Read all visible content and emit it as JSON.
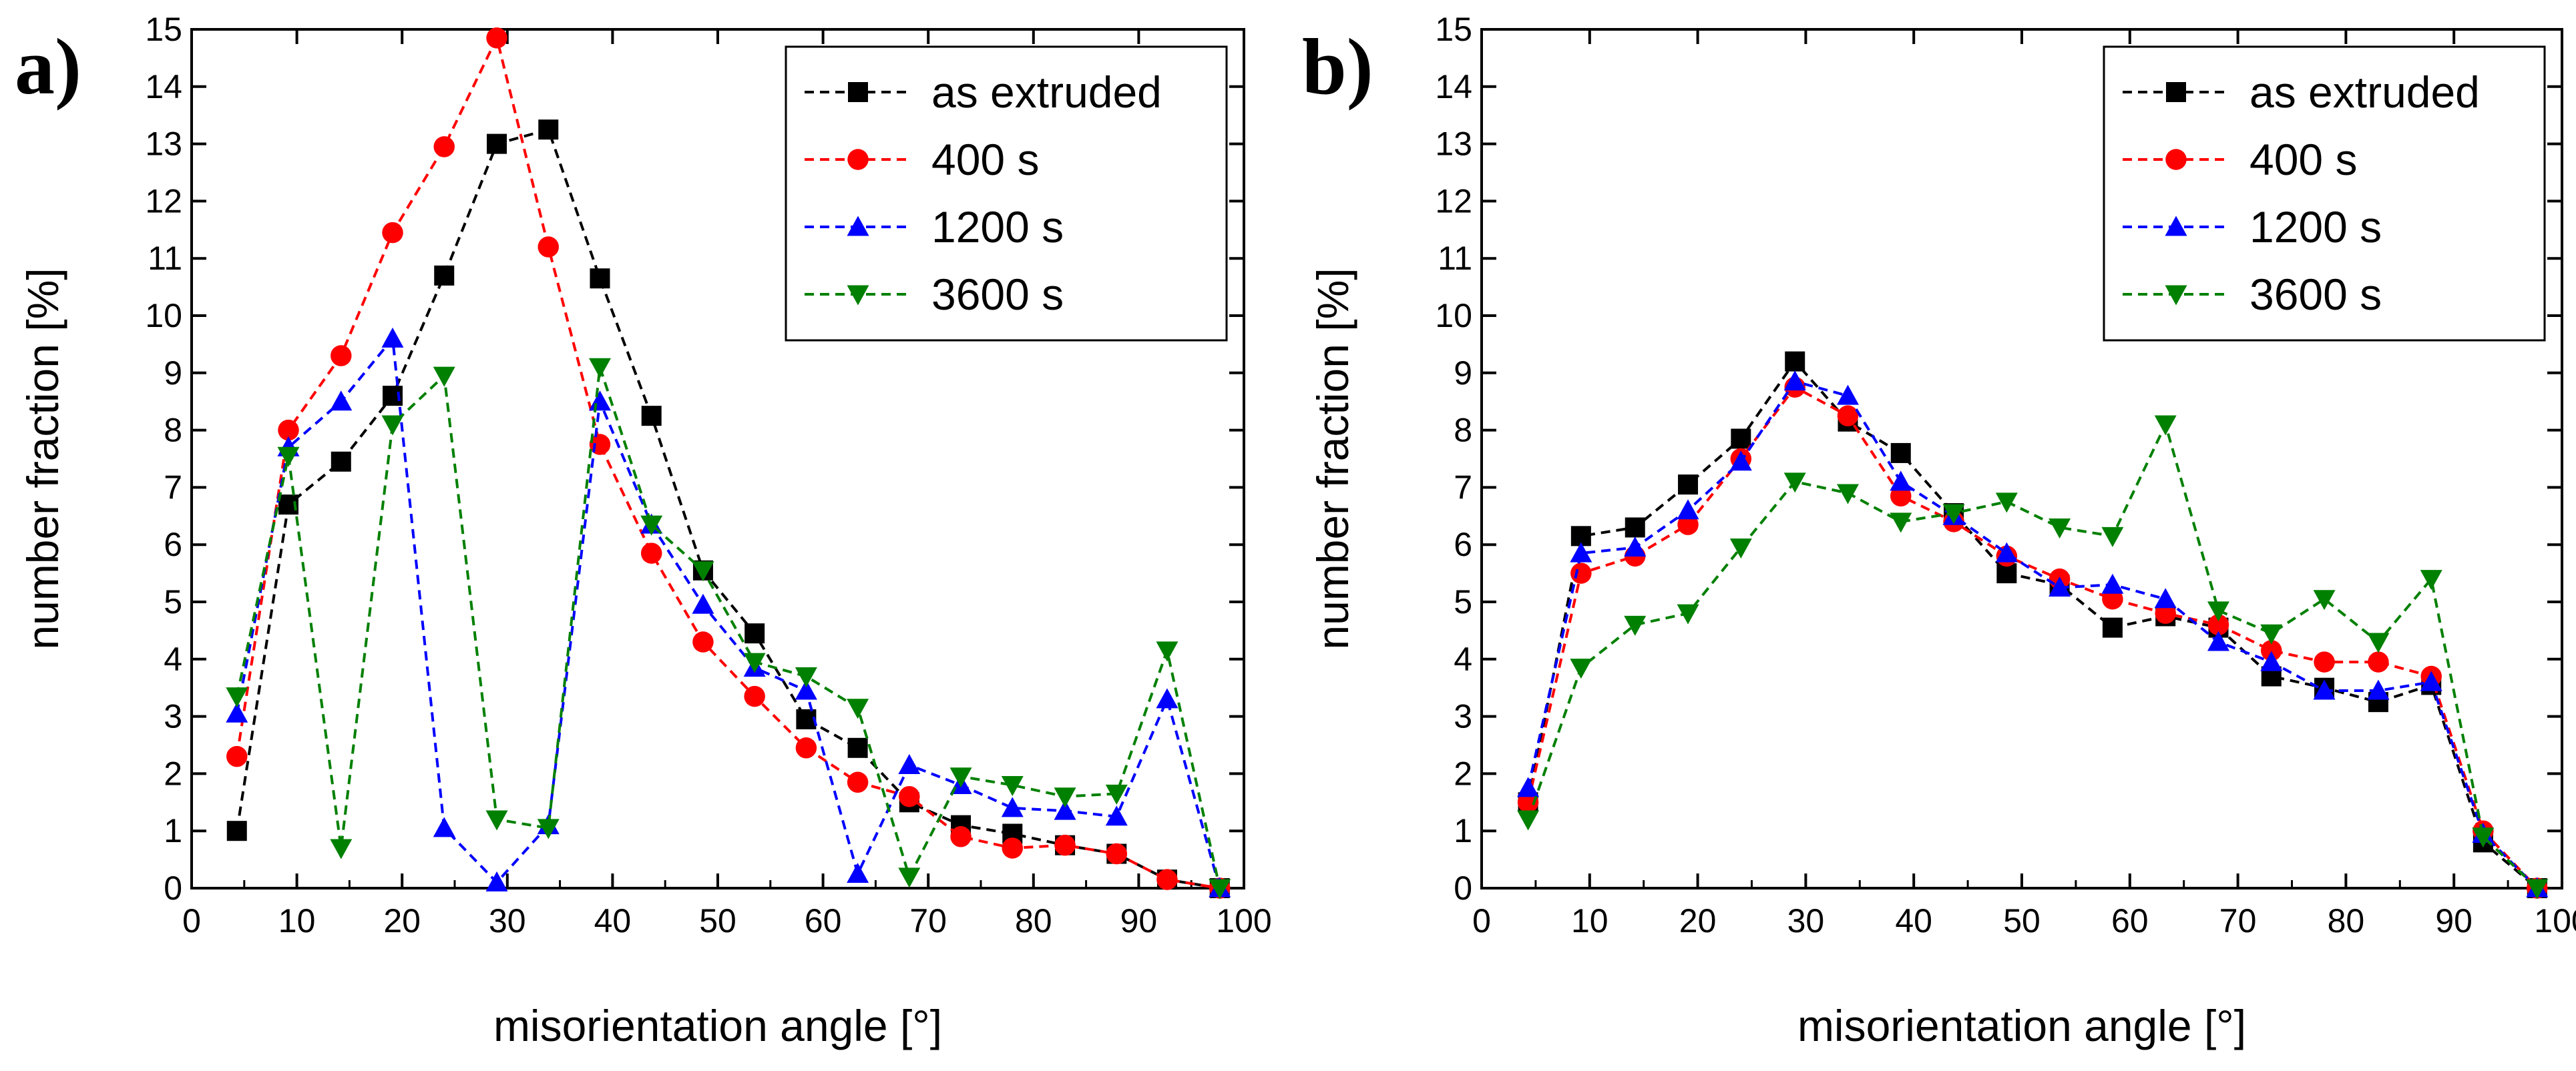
{
  "chart_data": [
    {
      "type": "line",
      "panel_label": "a)",
      "xlabel": "misorientation angle [°]",
      "ylabel": "number fraction [%]",
      "xlim": [
        0,
        100
      ],
      "ylim": [
        0,
        15
      ],
      "xticks": [
        0,
        10,
        20,
        30,
        40,
        50,
        60,
        70,
        80,
        90,
        100
      ],
      "yticks": [
        0,
        1,
        2,
        3,
        4,
        5,
        6,
        7,
        8,
        9,
        10,
        11,
        12,
        13,
        14,
        15
      ],
      "legend_position": "top-right",
      "x": [
        4.3,
        9.2,
        14.2,
        19.1,
        24.0,
        29.0,
        33.9,
        38.8,
        43.7,
        48.6,
        53.5,
        58.4,
        63.3,
        68.2,
        73.1,
        78.0,
        83.0,
        87.9,
        92.7,
        97.7
      ],
      "series": [
        {
          "name": "as extruded",
          "color": "#000000",
          "marker": "square",
          "values": [
            1.0,
            6.7,
            7.45,
            8.6,
            10.7,
            13.0,
            13.25,
            10.65,
            8.25,
            5.55,
            4.45,
            2.95,
            2.45,
            1.5,
            1.1,
            0.95,
            0.75,
            0.6,
            0.15,
            0.0
          ]
        },
        {
          "name": "400 s",
          "color": "#ff0000",
          "marker": "circle",
          "values": [
            2.3,
            8.0,
            9.3,
            11.45,
            12.95,
            14.85,
            11.2,
            7.75,
            5.85,
            4.3,
            3.35,
            2.45,
            1.85,
            1.6,
            0.9,
            0.7,
            0.75,
            0.6,
            0.15,
            0.0
          ]
        },
        {
          "name": "1200 s",
          "color": "#0000ff",
          "marker": "triangle-up",
          "values": [
            3.05,
            7.7,
            8.5,
            9.6,
            1.05,
            0.1,
            1.1,
            8.5,
            6.35,
            4.95,
            3.85,
            3.45,
            0.25,
            2.15,
            1.8,
            1.4,
            1.35,
            1.25,
            3.3,
            0.0
          ]
        },
        {
          "name": "3600 s",
          "color": "#008000",
          "marker": "triangle-down",
          "values": [
            3.35,
            7.55,
            0.7,
            8.1,
            8.95,
            1.2,
            1.05,
            9.1,
            6.35,
            5.55,
            3.95,
            3.7,
            3.15,
            0.2,
            1.95,
            1.8,
            1.6,
            1.65,
            4.15,
            0.0
          ]
        }
      ]
    },
    {
      "type": "line",
      "panel_label": "b)",
      "xlabel": "misorientation angle [°]",
      "ylabel": "number fraction [%]",
      "xlim": [
        0,
        100
      ],
      "ylim": [
        0,
        15
      ],
      "xticks": [
        0,
        10,
        20,
        30,
        40,
        50,
        60,
        70,
        80,
        90,
        100
      ],
      "yticks": [
        0,
        1,
        2,
        3,
        4,
        5,
        6,
        7,
        8,
        9,
        10,
        11,
        12,
        13,
        14,
        15
      ],
      "legend_position": "top-right",
      "x": [
        4.3,
        9.2,
        14.2,
        19.1,
        24.0,
        29.0,
        33.9,
        38.8,
        43.7,
        48.6,
        53.5,
        58.4,
        63.3,
        68.2,
        73.1,
        78.0,
        83.0,
        87.9,
        92.7,
        97.7
      ],
      "series": [
        {
          "name": "as extruded",
          "color": "#000000",
          "marker": "square",
          "values": [
            1.5,
            6.15,
            6.3,
            7.05,
            7.85,
            9.2,
            8.15,
            7.6,
            6.55,
            5.5,
            5.3,
            4.55,
            4.75,
            4.55,
            3.7,
            3.5,
            3.25,
            3.55,
            0.8,
            0.0
          ]
        },
        {
          "name": "400 s",
          "color": "#ff0000",
          "marker": "circle",
          "values": [
            1.5,
            5.5,
            5.8,
            6.35,
            7.5,
            8.75,
            8.25,
            6.85,
            6.4,
            5.8,
            5.4,
            5.05,
            4.8,
            4.6,
            4.15,
            3.95,
            3.95,
            3.7,
            1.0,
            0.0
          ]
        },
        {
          "name": "1200 s",
          "color": "#0000ff",
          "marker": "triangle-up",
          "values": [
            1.75,
            5.85,
            5.95,
            6.6,
            7.45,
            8.85,
            8.6,
            7.1,
            6.5,
            5.85,
            5.25,
            5.3,
            5.05,
            4.3,
            3.95,
            3.45,
            3.45,
            3.6,
            0.95,
            0.0
          ]
        },
        {
          "name": "3600 s",
          "color": "#008000",
          "marker": "triangle-down",
          "values": [
            1.2,
            3.85,
            4.6,
            4.8,
            5.95,
            7.1,
            6.9,
            6.4,
            6.55,
            6.75,
            6.3,
            6.15,
            8.1,
            4.85,
            4.45,
            5.05,
            4.3,
            5.4,
            0.9,
            0.0
          ]
        }
      ]
    }
  ]
}
